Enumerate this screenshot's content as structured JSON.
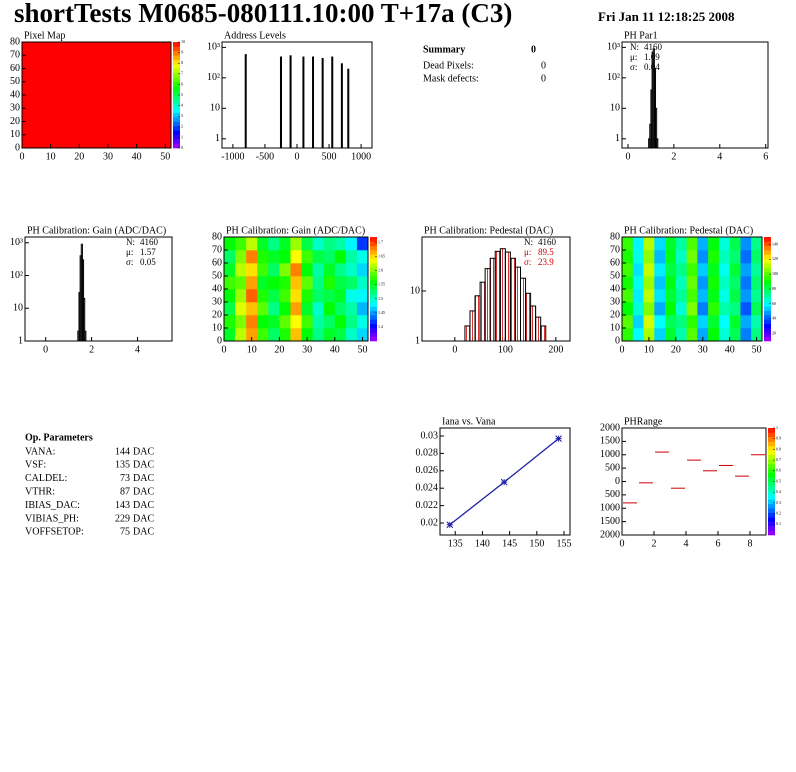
{
  "header": {
    "title": "shortTests M0685-080111.10:00 T+17a (C3)",
    "date": "Fri Jan 11 12:18:25 2008"
  },
  "summary": {
    "title": "Summary",
    "value": 0,
    "rows": [
      {
        "label": "Dead Pixels:",
        "value": 0
      },
      {
        "label": "Mask defects:",
        "value": 0
      }
    ]
  },
  "parameters": {
    "title": "Op. Parameters",
    "rows": [
      {
        "label": "VANA:",
        "value": 144,
        "unit": "DAC"
      },
      {
        "label": "VSF:",
        "value": 135,
        "unit": "DAC"
      },
      {
        "label": "CALDEL:",
        "value": 73,
        "unit": "DAC"
      },
      {
        "label": "VTHR:",
        "value": 87,
        "unit": "DAC"
      },
      {
        "label": "IBIAS_DAC:",
        "value": 143,
        "unit": "DAC"
      },
      {
        "label": "VIBIAS_PH:",
        "value": 229,
        "unit": "DAC"
      },
      {
        "label": "VOFFSETOP:",
        "value": 75,
        "unit": "DAC"
      }
    ]
  },
  "chart_data": [
    {
      "type": "heatmap",
      "title": "Pixel Map",
      "values": [
        [
          10
        ]
      ],
      "xlim": [
        0,
        52
      ],
      "ylim": [
        0,
        80
      ],
      "xticks": [
        0,
        10,
        20,
        30,
        40,
        50
      ],
      "yticks": [
        0,
        10,
        20,
        30,
        40,
        50,
        60,
        70,
        80
      ],
      "zlim": [
        0,
        10
      ],
      "zticks": [
        0,
        1,
        2,
        3,
        4,
        5,
        6,
        7,
        8,
        9,
        10
      ]
    },
    {
      "type": "spikes",
      "title": "Address Levels",
      "log": true,
      "color": "#000000",
      "x": [
        -800,
        -250,
        -100,
        100,
        250,
        400,
        550,
        700,
        800
      ],
      "values": [
        600,
        500,
        550,
        500,
        500,
        450,
        500,
        300,
        200
      ],
      "xlim": [
        -1170,
        1170
      ],
      "ylim": [
        0.5,
        1500
      ],
      "xticks": [
        -1000,
        -500,
        0,
        500,
        1000
      ],
      "yticks": [
        1,
        10,
        {
          "value": 100,
          "label": "10²"
        },
        {
          "value": 1000,
          "label": "10³"
        }
      ]
    },
    {
      "type": "histogram",
      "title": "PH Par1",
      "log": true,
      "color": "#000000",
      "bins": [
        0.9,
        0.95,
        1.0,
        1.05,
        1.1,
        1.15,
        1.2,
        1.25,
        1.3
      ],
      "counts": [
        1,
        3,
        40,
        700,
        900,
        200,
        10,
        1
      ],
      "xlim": [
        -0.26,
        6.1
      ],
      "ylim": [
        0.5,
        1500
      ],
      "xticks": [
        0,
        2,
        4,
        6
      ],
      "yticks": [
        1,
        10,
        {
          "value": 100,
          "label": "10²"
        },
        {
          "value": 1000,
          "label": "10³"
        }
      ],
      "stats": [
        {
          "label": "N:",
          "value": 4160
        },
        {
          "label": "μ:",
          "value": 1.09
        },
        {
          "label": "σ:",
          "value": 0.04
        }
      ],
      "stats_corner": "top-left"
    },
    {
      "type": "histogram",
      "title": "PH Calibration: Gain (ADC/DAC)",
      "log": true,
      "color": "#000000",
      "bins": [
        1.35,
        1.4,
        1.45,
        1.5,
        1.55,
        1.6,
        1.65,
        1.7,
        1.75,
        1.8
      ],
      "counts": [
        1,
        2,
        30,
        400,
        900,
        300,
        20,
        2,
        1
      ],
      "xlim": [
        -0.9,
        5.5
      ],
      "ylim": [
        1,
        1500
      ],
      "xticks": [
        0,
        2,
        4
      ],
      "yticks": [
        1,
        10,
        {
          "value": 100,
          "label": "10²"
        },
        {
          "value": 1000,
          "label": "10³"
        }
      ],
      "stats": [
        {
          "label": "N:",
          "value": 4160
        },
        {
          "label": "μ:",
          "value": 1.57
        },
        {
          "label": "σ:",
          "value": 0.05
        }
      ],
      "stats_corner": "top-right"
    },
    {
      "type": "heatmap",
      "title": "PH Calibration: Gain (ADC/DAC)",
      "xlim": [
        0,
        52
      ],
      "ylim": [
        0,
        80
      ],
      "xticks": [
        0,
        10,
        20,
        30,
        40,
        50
      ],
      "yticks": [
        0,
        10,
        20,
        30,
        40,
        50,
        60,
        70,
        80
      ],
      "zlim": [
        1.35,
        1.72
      ],
      "zticks": [
        1.4,
        1.45,
        1.5,
        1.55,
        1.6,
        1.65,
        1.7
      ],
      "values": [
        [
          1.55,
          1.62,
          1.67,
          1.58,
          1.53,
          1.57,
          1.66,
          1.56,
          1.52,
          1.55,
          1.54,
          1.5,
          1.47
        ],
        [
          1.57,
          1.6,
          1.68,
          1.56,
          1.55,
          1.59,
          1.64,
          1.58,
          1.51,
          1.53,
          1.56,
          1.52,
          1.49
        ],
        [
          1.54,
          1.63,
          1.66,
          1.59,
          1.52,
          1.56,
          1.67,
          1.55,
          1.5,
          1.56,
          1.53,
          1.51,
          1.46
        ],
        [
          1.56,
          1.61,
          1.69,
          1.57,
          1.54,
          1.58,
          1.65,
          1.57,
          1.53,
          1.54,
          1.55,
          1.49,
          1.48
        ],
        [
          1.58,
          1.59,
          1.67,
          1.55,
          1.56,
          1.57,
          1.66,
          1.59,
          1.52,
          1.57,
          1.54,
          1.53,
          1.5
        ],
        [
          1.55,
          1.62,
          1.65,
          1.58,
          1.53,
          1.6,
          1.68,
          1.56,
          1.51,
          1.55,
          1.52,
          1.5,
          1.47
        ],
        [
          1.53,
          1.6,
          1.68,
          1.57,
          1.55,
          1.56,
          1.64,
          1.58,
          1.54,
          1.53,
          1.56,
          1.51,
          1.49
        ],
        [
          1.56,
          1.58,
          1.62,
          1.55,
          1.52,
          1.55,
          1.61,
          1.54,
          1.5,
          1.52,
          1.51,
          1.48,
          1.42
        ]
      ]
    },
    {
      "type": "histogram",
      "title": "PH Calibration: Pedestal (DAC)",
      "log": true,
      "color": "#000000",
      "fill_style": "hatched",
      "fill_color": "#cc0000",
      "bins": [
        10,
        20,
        30,
        40,
        50,
        60,
        70,
        80,
        90,
        100,
        110,
        120,
        130,
        140,
        150,
        160,
        170,
        180,
        190
      ],
      "counts": [
        1,
        2,
        4,
        8,
        15,
        28,
        45,
        62,
        70,
        60,
        45,
        30,
        18,
        9,
        5,
        3,
        2,
        1
      ],
      "xlim": [
        -65,
        228
      ],
      "ylim": [
        1,
        120
      ],
      "xticks": [
        0,
        100,
        200
      ],
      "yticks": [
        1,
        10
      ],
      "stats": [
        {
          "label": "N:",
          "value": 4160
        },
        {
          "label": "μ:",
          "value": 89.5,
          "color": "#cc0000"
        },
        {
          "label": "σ:",
          "value": 23.9,
          "color": "#cc0000"
        }
      ],
      "stats_corner": "top-right"
    },
    {
      "type": "heatmap",
      "title": "PH Calibration: Pedestal (DAC)",
      "xlim": [
        0,
        52
      ],
      "ylim": [
        0,
        80
      ],
      "xticks": [
        0,
        10,
        20,
        30,
        40,
        50
      ],
      "yticks": [
        0,
        10,
        20,
        30,
        40,
        50,
        60,
        70,
        80
      ],
      "zlim": [
        10,
        150
      ],
      "zticks": [
        20,
        40,
        60,
        80,
        100,
        120,
        140
      ],
      "values": [
        [
          95,
          60,
          110,
          55,
          85,
          70,
          100,
          50,
          90,
          65,
          80,
          45,
          75
        ],
        [
          100,
          55,
          115,
          60,
          80,
          75,
          95,
          55,
          85,
          60,
          85,
          50,
          70
        ],
        [
          90,
          65,
          105,
          50,
          90,
          65,
          105,
          45,
          95,
          70,
          75,
          40,
          80
        ],
        [
          98,
          58,
          112,
          57,
          84,
          72,
          98,
          52,
          88,
          63,
          82,
          48,
          73
        ],
        [
          92,
          62,
          108,
          53,
          88,
          68,
          102,
          48,
          92,
          67,
          78,
          44,
          77
        ],
        [
          97,
          57,
          113,
          58,
          82,
          74,
          97,
          54,
          87,
          62,
          84,
          49,
          72
        ],
        [
          93,
          63,
          107,
          52,
          87,
          67,
          103,
          47,
          93,
          68,
          77,
          43,
          78
        ],
        [
          96,
          59,
          111,
          56,
          85,
          71,
          99,
          51,
          89,
          64,
          81,
          47,
          74
        ]
      ]
    },
    {
      "type": "scatter",
      "title": "Iana vs. Vana",
      "color": "#1f1fa8",
      "x": [
        134,
        144,
        154
      ],
      "values": [
        0.0198,
        0.0247,
        0.0297
      ],
      "xlim": [
        132.2,
        156.1
      ],
      "ylim": [
        0.01862,
        0.03092
      ],
      "xticks": [
        135,
        140,
        145,
        150,
        155
      ],
      "yticks": [
        0.02,
        0.022,
        0.024,
        0.026,
        0.028,
        0.03
      ]
    },
    {
      "type": "segments",
      "title": "PHRange",
      "color": "#cc0000",
      "bins": [
        0,
        1,
        2,
        3,
        4,
        5,
        6,
        7,
        8,
        9
      ],
      "counts": [
        -800,
        -50,
        1100,
        -250,
        800,
        400,
        600,
        200,
        1000
      ],
      "xlim": [
        0,
        9
      ],
      "ylim": [
        -2000,
        2000
      ],
      "xticks": [
        0,
        2,
        4,
        6,
        8
      ],
      "yticks": [
        {
          "value": -2000,
          "label": "2000"
        },
        {
          "value": -1500,
          "label": "1500"
        },
        {
          "value": -1000,
          "label": "1000"
        },
        {
          "value": -500,
          "label": "500"
        },
        0,
        500,
        1000,
        1500,
        2000
      ],
      "zlim": [
        0,
        1
      ],
      "zticks": [
        0.1,
        0.2,
        0.3,
        0.4,
        0.5,
        0.6,
        0.7,
        0.8,
        0.9,
        1
      ]
    }
  ]
}
